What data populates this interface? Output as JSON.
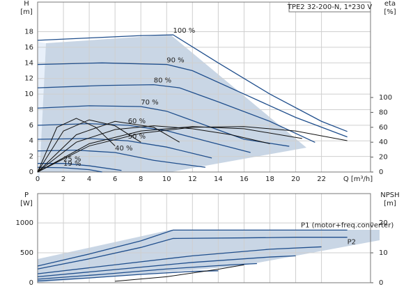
{
  "chart_data": [
    {
      "type": "line",
      "title": "TPE2 32-200-N, 1*230 V",
      "y_label": "H",
      "y_unit": "[m]",
      "y2_label": "eta",
      "y2_unit": "[%]",
      "x_label": "Q [m³/h]",
      "xlim": [
        0,
        25.8
      ],
      "xticks": [
        0,
        2,
        4,
        6,
        8,
        10,
        12,
        14,
        16,
        18,
        20,
        22
      ],
      "ylim": [
        0,
        21.8
      ],
      "yticks": [
        0,
        2,
        4,
        6,
        8,
        10,
        12,
        14,
        16,
        18
      ],
      "y2lim": [
        0,
        228
      ],
      "y2ticks": [
        0,
        20,
        40,
        60,
        80,
        100
      ],
      "grid": true,
      "series": [
        {
          "name": "100 %",
          "color": "#1f4e8c",
          "x": [
            0,
            4,
            8,
            10.5,
            14,
            18,
            22,
            24
          ],
          "values": [
            16.9,
            17.2,
            17.5,
            17.6,
            14,
            10,
            6.5,
            5.2
          ]
        },
        {
          "name": "90 %",
          "color": "#1f4e8c",
          "x": [
            0,
            5,
            10,
            12,
            16,
            20,
            24
          ],
          "values": [
            13.8,
            14,
            13.8,
            13,
            10,
            7,
            4.5
          ]
        },
        {
          "name": "80 %",
          "color": "#1f4e8c",
          "x": [
            0,
            5,
            9,
            11,
            14,
            18,
            21.5
          ],
          "values": [
            10.8,
            11.1,
            11.2,
            10.8,
            9,
            6.5,
            3.8
          ]
        },
        {
          "name": "70 %",
          "color": "#1f4e8c",
          "x": [
            0,
            4,
            8,
            10,
            13,
            16,
            19.5
          ],
          "values": [
            8.2,
            8.5,
            8.4,
            7.8,
            6,
            4.2,
            3.3
          ]
        },
        {
          "name": "60 %",
          "color": "#1f4e8c",
          "x": [
            0,
            4,
            7,
            10,
            13,
            16.5
          ],
          "values": [
            6,
            6.2,
            6,
            5.3,
            4,
            2.5
          ]
        },
        {
          "name": "50 %",
          "color": "#1f4e8c",
          "x": [
            0,
            4,
            7,
            10,
            13.5
          ],
          "values": [
            4.2,
            4.3,
            4,
            3.2,
            1.8
          ]
        },
        {
          "name": "40 %",
          "color": "#1f4e8c",
          "x": [
            0,
            3,
            6,
            9,
            13
          ],
          "values": [
            2.7,
            2.8,
            2.5,
            1.5,
            0.6
          ]
        },
        {
          "name": "25 %",
          "color": "#1f4e8c",
          "x": [
            0,
            2,
            4,
            6.5
          ],
          "values": [
            1.1,
            1.1,
            0.8,
            0.2
          ]
        },
        {
          "name": "19 %",
          "color": "#1f4e8c",
          "x": [
            0,
            2,
            4,
            5
          ],
          "values": [
            0.6,
            0.55,
            0.3,
            0
          ]
        },
        {
          "color": "#111111",
          "axis": "y2",
          "x": [
            0,
            4,
            8,
            12,
            16,
            20,
            24
          ],
          "values": [
            0,
            35,
            52,
            60,
            61,
            55,
            42
          ]
        },
        {
          "color": "#111111",
          "axis": "y2",
          "x": [
            0,
            4,
            8,
            12,
            16,
            20.5
          ],
          "values": [
            0,
            38,
            55,
            61,
            58,
            45
          ]
        },
        {
          "color": "#111111",
          "axis": "y2",
          "x": [
            0,
            3,
            6,
            9,
            12,
            15,
            18
          ],
          "values": [
            0,
            40,
            57,
            62,
            58,
            50,
            38
          ]
        },
        {
          "color": "#111111",
          "axis": "y2",
          "x": [
            0,
            1.5,
            3,
            4.5,
            6
          ],
          "values": [
            0,
            60,
            72,
            60,
            35
          ]
        },
        {
          "color": "#111111",
          "axis": "y2",
          "x": [
            0,
            2,
            4,
            6,
            8
          ],
          "values": [
            0,
            55,
            70,
            62,
            40
          ]
        },
        {
          "color": "#111111",
          "axis": "y2",
          "x": [
            0,
            3,
            6,
            9,
            11
          ],
          "values": [
            0,
            50,
            68,
            60,
            40
          ]
        }
      ]
    },
    {
      "type": "line",
      "y_label": "P",
      "y_unit": "[W]",
      "y2_label": "NPSH",
      "y2_unit": "[m]",
      "xlim": [
        0,
        25.8
      ],
      "xticks": [
        0,
        2,
        4,
        6,
        8,
        10,
        12,
        14,
        16,
        18,
        20,
        22
      ],
      "ylim": [
        0,
        1490
      ],
      "yticks": [
        0,
        500,
        1000
      ],
      "y2lim": [
        0,
        29.8
      ],
      "y2ticks": [
        0,
        10,
        20
      ],
      "grid": true,
      "series": [
        {
          "name": "P1 (motor+freq.converter)",
          "color": "#1f4e8c",
          "x": [
            0,
            4,
            8,
            10.5,
            16,
            20,
            24
          ],
          "values": [
            280,
            480,
            700,
            880,
            880,
            880,
            880
          ]
        },
        {
          "name": "P2",
          "color": "#1f4e8c",
          "x": [
            0,
            4,
            8,
            10.5,
            16,
            20,
            24
          ],
          "values": [
            230,
            400,
            590,
            740,
            750,
            760,
            760
          ]
        },
        {
          "color": "#1f4e8c",
          "x": [
            0,
            6,
            12,
            18,
            22
          ],
          "values": [
            150,
            300,
            450,
            560,
            600
          ]
        },
        {
          "color": "#1f4e8c",
          "x": [
            0,
            6,
            12,
            18,
            20
          ],
          "values": [
            100,
            220,
            340,
            430,
            450
          ]
        },
        {
          "color": "#1f4e8c",
          "x": [
            0,
            5,
            10,
            15,
            17
          ],
          "values": [
            60,
            140,
            230,
            300,
            320
          ]
        },
        {
          "color": "#1f4e8c",
          "x": [
            0,
            4,
            8,
            12,
            14
          ],
          "values": [
            30,
            80,
            140,
            190,
            200
          ]
        },
        {
          "color": "#111111",
          "axis": "y2",
          "x": [
            6,
            10,
            14,
            16
          ],
          "values": [
            0.5,
            2,
            4.5,
            6
          ]
        }
      ]
    }
  ]
}
